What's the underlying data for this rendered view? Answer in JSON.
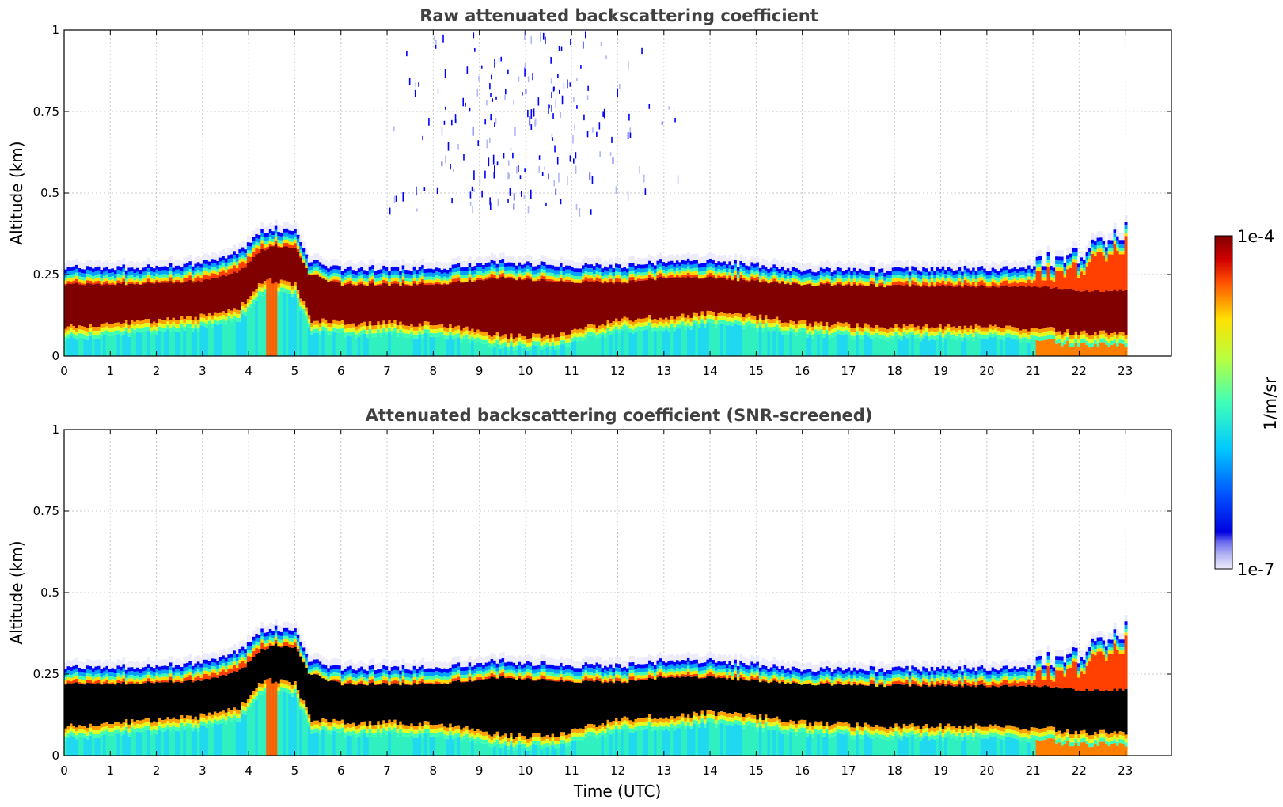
{
  "chart_data": [
    {
      "type": "heatmap",
      "title": "Raw attenuated backscattering coefficient",
      "xlabel": "",
      "ylabel": "Altitude (km)",
      "xlim": [
        0,
        24
      ],
      "ylim": [
        0,
        1
      ],
      "x_ticks": [
        0,
        1,
        2,
        3,
        4,
        5,
        6,
        7,
        8,
        9,
        10,
        11,
        12,
        13,
        14,
        15,
        16,
        17,
        18,
        19,
        20,
        21,
        22,
        23
      ],
      "y_ticks": [
        0,
        0.25,
        0.5,
        0.75,
        1
      ],
      "y_tick_labels": [
        "0",
        "0.25",
        "0.5",
        "0.75",
        "1"
      ],
      "grid": true,
      "data_extent_hours": [
        0,
        23
      ],
      "screened": false,
      "layer_profile": {
        "hour": [
          0,
          1,
          2,
          3,
          3.8,
          4.2,
          4.5,
          5.0,
          5.3,
          6,
          8,
          9.5,
          10.5,
          12,
          13,
          14,
          15,
          16,
          18,
          20,
          21,
          22,
          23
        ],
        "top_km": [
          0.27,
          0.27,
          0.275,
          0.285,
          0.32,
          0.38,
          0.39,
          0.385,
          0.29,
          0.27,
          0.27,
          0.29,
          0.28,
          0.275,
          0.29,
          0.29,
          0.28,
          0.265,
          0.265,
          0.27,
          0.275,
          0.3,
          0.37
        ],
        "core_top_km": [
          0.22,
          0.22,
          0.225,
          0.23,
          0.26,
          0.32,
          0.34,
          0.33,
          0.25,
          0.22,
          0.22,
          0.24,
          0.23,
          0.225,
          0.24,
          0.24,
          0.23,
          0.22,
          0.215,
          0.215,
          0.215,
          0.2,
          0.2
        ],
        "core_bottom_km": [
          0.09,
          0.1,
          0.11,
          0.12,
          0.15,
          0.22,
          0.23,
          0.22,
          0.11,
          0.1,
          0.1,
          0.06,
          0.06,
          0.11,
          0.12,
          0.13,
          0.12,
          0.1,
          0.09,
          0.09,
          0.085,
          0.07,
          0.07
        ]
      }
    },
    {
      "type": "heatmap",
      "title": "Attenuated backscattering coefficient (SNR-screened)",
      "xlabel": "Time (UTC)",
      "ylabel": "Altitude (km)",
      "xlim": [
        0,
        24
      ],
      "ylim": [
        0,
        1
      ],
      "x_ticks": [
        0,
        1,
        2,
        3,
        4,
        5,
        6,
        7,
        8,
        9,
        10,
        11,
        12,
        13,
        14,
        15,
        16,
        17,
        18,
        19,
        20,
        21,
        22,
        23
      ],
      "y_ticks": [
        0,
        0.25,
        0.5,
        0.75,
        1
      ],
      "y_tick_labels": [
        "0",
        "0.25",
        "0.5",
        "0.75",
        "1"
      ],
      "grid": true,
      "data_extent_hours": [
        0,
        23
      ],
      "screened": true,
      "screened_color": "#000000"
    }
  ],
  "colorbar": {
    "label": "1/m/sr",
    "max_label": "1e-4",
    "min_label": "1e-7",
    "scale": "log",
    "range": [
      1e-07,
      0.0001
    ],
    "colormap": "jet"
  }
}
